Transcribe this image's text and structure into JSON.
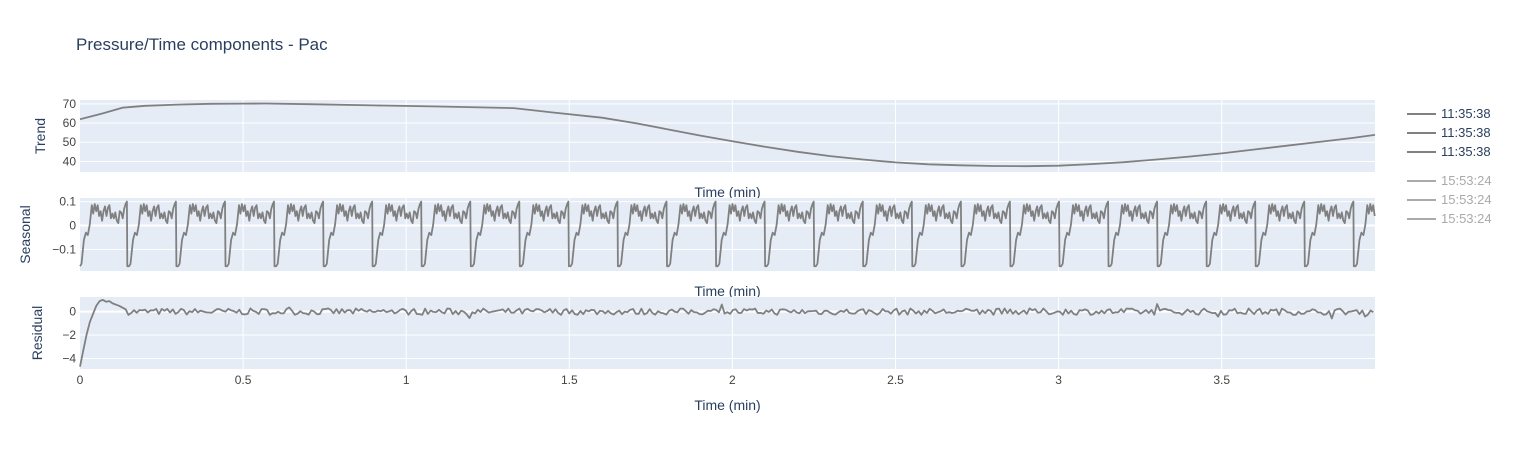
{
  "chart_data": {
    "type": "line",
    "title": "Pressure/Time components - Pac",
    "colors": {
      "line": "#808080",
      "plot_bg": "#e5ecf6",
      "grid": "#ffffff",
      "text": "#2a3f5f",
      "tick_text": "#444444",
      "legend_dim": "#aaaaaa"
    },
    "xlim": [
      0,
      3.97
    ],
    "x_ticks": [
      0,
      0.5,
      1,
      1.5,
      2,
      2.5,
      3,
      3.5
    ],
    "x_tick_labels": [
      "0",
      "0.5",
      "1",
      "1.5",
      "2",
      "2.5",
      "3",
      "3.5"
    ],
    "legend": {
      "placement": "right",
      "entries": [
        {
          "label": "11:35:38",
          "dimmed": false
        },
        {
          "label": "11:35:38",
          "dimmed": false
        },
        {
          "label": "11:35:38",
          "dimmed": false
        },
        {
          "label": "15:53:24",
          "dimmed": true
        },
        {
          "label": "15:53:24",
          "dimmed": true
        },
        {
          "label": "15:53:24",
          "dimmed": true
        }
      ]
    },
    "panels": [
      {
        "key": "trend",
        "ylabel": "Trend",
        "xlabel": "Time (min)",
        "ylim": [
          34.5,
          72
        ],
        "y_ticks": [
          40,
          50,
          60,
          70
        ],
        "y_tick_labels": [
          "40",
          "50",
          "60",
          "70"
        ],
        "series": [
          {
            "x": [
              0,
              0.07,
              0.13,
              0.2,
              0.3,
              0.4,
              0.5,
              0.57,
              0.7,
              0.9,
              1.1,
              1.33,
              1.45,
              1.6,
              1.7,
              1.8,
              1.9,
              2.0,
              2.1,
              2.2,
              2.3,
              2.4,
              2.5,
              2.6,
              2.7,
              2.8,
              2.9,
              3.0,
              3.1,
              3.2,
              3.3,
              3.4,
              3.5,
              3.6,
              3.7,
              3.8,
              3.9,
              3.97
            ],
            "y": [
              62,
              65,
              68,
              69,
              69.6,
              70,
              70.1,
              70.2,
              69.8,
              69.2,
              68.6,
              67.8,
              65.5,
              62.8,
              60,
              56.8,
              53.5,
              50.5,
              47.6,
              45,
              42.8,
              41,
              39.5,
              38.5,
              38,
              37.6,
              37.5,
              37.8,
              38.6,
              39.6,
              41,
              42.5,
              44.2,
              46.2,
              48.2,
              50.2,
              52.2,
              53.8
            ]
          }
        ]
      },
      {
        "key": "seasonal",
        "ylabel": "Seasonal",
        "xlabel": "Time (min)",
        "ylim": [
          -0.19,
          0.115
        ],
        "y_ticks": [
          -0.1,
          0,
          0.1
        ],
        "y_tick_labels": [
          "−0.1",
          "0",
          "0.1"
        ],
        "period": 0.1504,
        "pattern": {
          "t": [
            0,
            0.03,
            0.08,
            0.12,
            0.16,
            0.2,
            0.24,
            0.27,
            0.3,
            0.33,
            0.36,
            0.39,
            0.42,
            0.45,
            0.48,
            0.51,
            0.54,
            0.57,
            0.6,
            0.63,
            0.66,
            0.69,
            0.72,
            0.75,
            0.78,
            0.81,
            0.84,
            0.87,
            0.9,
            0.93,
            0.955,
            0.965
          ],
          "v": [
            -0.17,
            -0.16,
            -0.06,
            -0.03,
            -0.04,
            0.005,
            0.085,
            0.05,
            0.09,
            0.06,
            0.085,
            0.04,
            0.06,
            0.02,
            0.06,
            0.08,
            0.04,
            0.075,
            0.085,
            0.03,
            0.05,
            0.03,
            0.055,
            0.02,
            0.01,
            0.06,
            0.055,
            0.03,
            0.07,
            0.09,
            0.1,
            -0.17
          ]
        }
      },
      {
        "key": "residual",
        "ylabel": "Residual",
        "xlabel": "Time (min)",
        "ylim": [
          -4.9,
          1.25
        ],
        "y_ticks": [
          -4,
          -2,
          0
        ],
        "y_tick_labels": [
          "−4",
          "−2",
          "0"
        ],
        "initial_transient": {
          "x": [
            0,
            0.01,
            0.02,
            0.03,
            0.04,
            0.05,
            0.06,
            0.07,
            0.08,
            0.09,
            0.1,
            0.12,
            0.14
          ],
          "y": [
            -4.7,
            -3.3,
            -2.0,
            -0.9,
            -0.2,
            0.5,
            0.9,
            1.0,
            0.85,
            0.9,
            0.7,
            0.5,
            0.2
          ]
        },
        "noise_amplitude": 0.28
      }
    ]
  }
}
